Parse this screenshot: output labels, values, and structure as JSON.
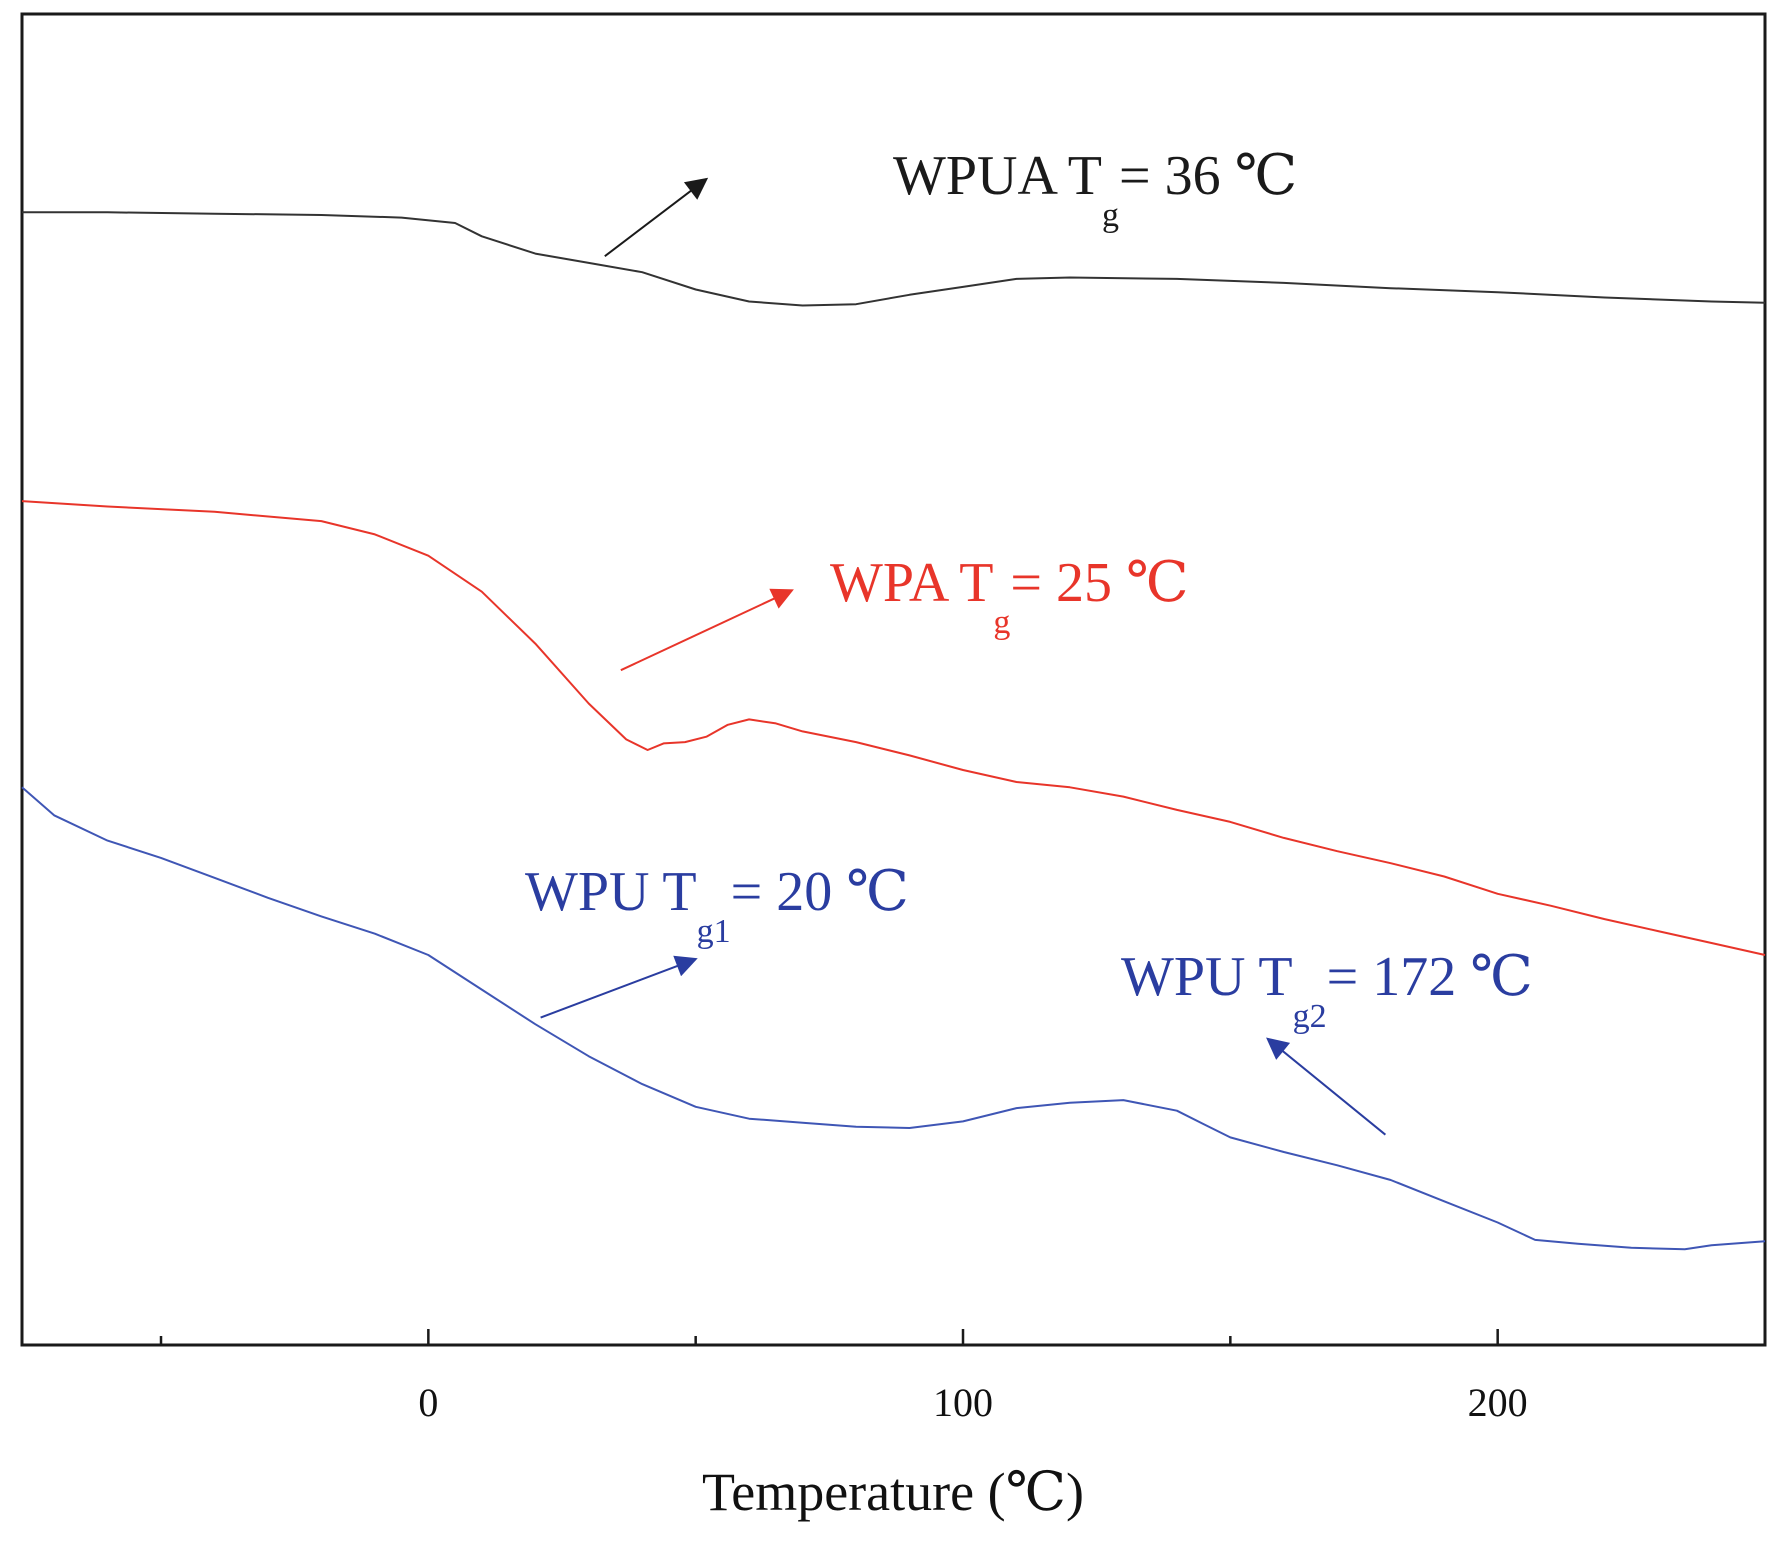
{
  "chart_data": {
    "type": "line",
    "title": "",
    "xlabel": "Temperature (℃)",
    "ylabel": "",
    "xlim": [
      -76,
      250
    ],
    "ylim": [
      0,
      100
    ],
    "xticks_major": [
      0,
      100,
      200
    ],
    "xticks_minor": [
      -50,
      50,
      150,
      250
    ],
    "grid": false,
    "series": [
      {
        "name": "WPUA",
        "color": "#333333",
        "x": [
          -76,
          -60,
          -40,
          -20,
          -5,
          5,
          10,
          20,
          30,
          40,
          50,
          60,
          70,
          80,
          90,
          100,
          110,
          120,
          140,
          160,
          180,
          200,
          220,
          240,
          250
        ],
        "y": [
          85.1,
          85.1,
          85.0,
          84.9,
          84.7,
          84.3,
          83.3,
          82.0,
          81.3,
          80.6,
          79.3,
          78.4,
          78.1,
          78.2,
          78.9,
          79.5,
          80.1,
          80.2,
          80.1,
          79.8,
          79.4,
          79.1,
          78.7,
          78.4,
          78.3
        ]
      },
      {
        "name": "WPA",
        "color": "#e8352a",
        "x": [
          -76,
          -60,
          -40,
          -20,
          -10,
          0,
          10,
          20,
          30,
          37,
          41,
          44,
          48,
          52,
          56,
          60,
          65,
          70,
          80,
          90,
          100,
          110,
          120,
          130,
          140,
          150,
          160,
          170,
          180,
          190,
          200,
          210,
          220,
          230,
          240,
          250
        ],
        "y": [
          63.4,
          63.0,
          62.6,
          61.9,
          60.9,
          59.3,
          56.6,
          52.7,
          48.2,
          45.5,
          44.7,
          45.2,
          45.3,
          45.7,
          46.6,
          47.0,
          46.7,
          46.1,
          45.3,
          44.3,
          43.2,
          42.3,
          41.9,
          41.2,
          40.2,
          39.3,
          38.1,
          37.1,
          36.2,
          35.2,
          33.9,
          33.0,
          32.0,
          31.1,
          30.2,
          29.3
        ]
      },
      {
        "name": "WPU",
        "color": "#3f56b5",
        "x": [
          -76,
          -70,
          -60,
          -50,
          -40,
          -30,
          -20,
          -10,
          0,
          10,
          20,
          30,
          40,
          50,
          60,
          70,
          80,
          90,
          100,
          110,
          120,
          130,
          140,
          145,
          150,
          160,
          170,
          180,
          190,
          200,
          207,
          215,
          225,
          235,
          240,
          250
        ],
        "y": [
          41.9,
          39.8,
          37.9,
          36.6,
          35.1,
          33.6,
          32.2,
          30.9,
          29.3,
          26.7,
          24.1,
          21.7,
          19.6,
          17.9,
          17.0,
          16.7,
          16.4,
          16.3,
          16.8,
          17.8,
          18.2,
          18.4,
          17.6,
          16.6,
          15.6,
          14.5,
          13.5,
          12.4,
          10.8,
          9.2,
          7.9,
          7.6,
          7.3,
          7.2,
          7.5,
          7.8
        ]
      }
    ],
    "annotations": [
      {
        "series": "WPUA",
        "text": "WPUA T",
        "sub": "g",
        "value_text": "= 36 ℃",
        "color": "#1a1a1a",
        "arrow_from": [
          33,
          81.8
        ],
        "arrow_to": [
          52,
          87.6
        ]
      },
      {
        "series": "WPA",
        "text": "WPA T",
        "sub": "g",
        "value_text": "= 25 ℃",
        "color": "#e8352a",
        "arrow_from": [
          36,
          50.7
        ],
        "arrow_to": [
          68,
          56.7
        ]
      },
      {
        "series": "WPU",
        "text": "WPU T",
        "sub": "g1",
        "value_text": "= 20 ℃",
        "color": "#2a3da0",
        "arrow_from": [
          21,
          24.6
        ],
        "arrow_to": [
          50,
          29.0
        ]
      },
      {
        "series": "WPU",
        "text": "WPU T",
        "sub": "g2",
        "value_text": "= 172 ℃",
        "color": "#2a3da0",
        "arrow_from": [
          179,
          15.8
        ],
        "arrow_to": [
          157,
          23.0
        ]
      }
    ]
  }
}
